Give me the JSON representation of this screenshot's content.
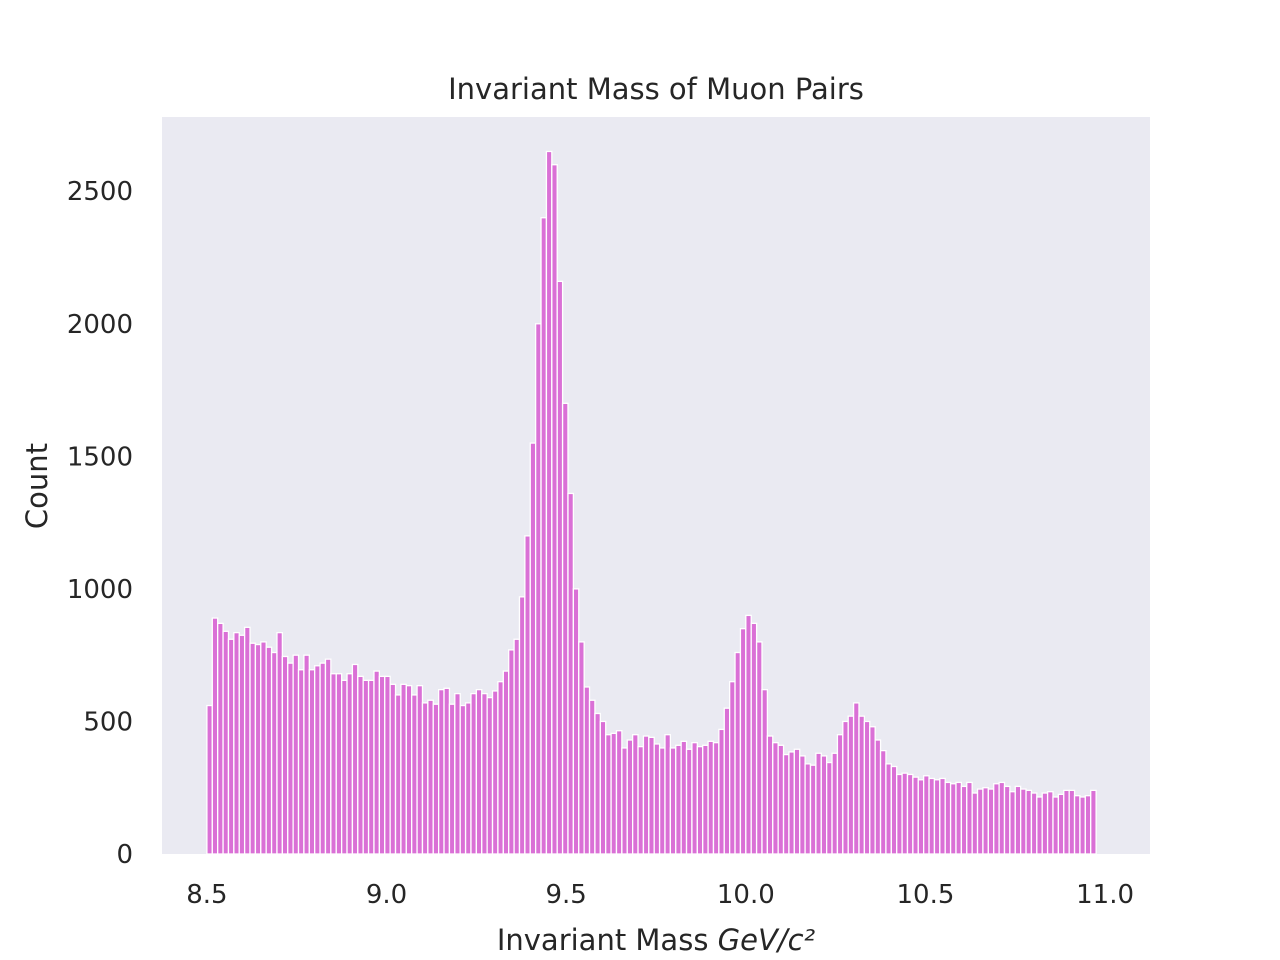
{
  "chart_data": {
    "type": "bar",
    "title": "Invariant Mass of Muon Pairs",
    "xlabel": "Invariant Mass",
    "xlabel_units": "GeV/c²",
    "ylabel": "Count",
    "xlim": [
      8.375,
      11.125
    ],
    "ylim": [
      0,
      2780
    ],
    "xticks": [
      "8.5",
      "9.0",
      "9.5",
      "10.0",
      "10.5",
      "11.0"
    ],
    "xtick_values": [
      8.5,
      9.0,
      9.5,
      10.0,
      10.5,
      11.0
    ],
    "yticks": [
      "0",
      "500",
      "1000",
      "1500",
      "2000",
      "2500"
    ],
    "ytick_values": [
      0,
      500,
      1000,
      1500,
      2000,
      2500
    ],
    "grid": false,
    "bar_color": "#da70d6",
    "background_color": "#eaeaf2",
    "bin_start": 8.5,
    "bin_width": 0.015,
    "values": [
      560,
      890,
      870,
      840,
      810,
      835,
      825,
      855,
      795,
      790,
      800,
      780,
      760,
      835,
      745,
      720,
      750,
      695,
      750,
      695,
      710,
      720,
      735,
      680,
      680,
      655,
      680,
      715,
      670,
      655,
      655,
      690,
      670,
      670,
      640,
      600,
      640,
      635,
      600,
      635,
      570,
      580,
      565,
      620,
      625,
      565,
      605,
      560,
      570,
      605,
      620,
      605,
      590,
      615,
      650,
      690,
      770,
      810,
      970,
      1200,
      1550,
      2000,
      2400,
      2650,
      2600,
      2160,
      1700,
      1360,
      1000,
      800,
      630,
      580,
      530,
      500,
      450,
      455,
      465,
      400,
      430,
      450,
      405,
      445,
      440,
      415,
      400,
      450,
      400,
      410,
      425,
      395,
      420,
      405,
      410,
      425,
      420,
      470,
      550,
      650,
      760,
      850,
      900,
      870,
      800,
      620,
      445,
      420,
      410,
      375,
      385,
      395,
      370,
      340,
      335,
      380,
      370,
      345,
      380,
      450,
      500,
      520,
      570,
      520,
      500,
      480,
      430,
      390,
      340,
      330,
      300,
      305,
      300,
      290,
      280,
      295,
      285,
      280,
      285,
      270,
      265,
      270,
      255,
      270,
      230,
      245,
      250,
      245,
      265,
      270,
      255,
      235,
      255,
      245,
      240,
      230,
      215,
      230,
      235,
      215,
      225,
      240,
      240,
      220,
      215,
      220,
      240
    ]
  }
}
